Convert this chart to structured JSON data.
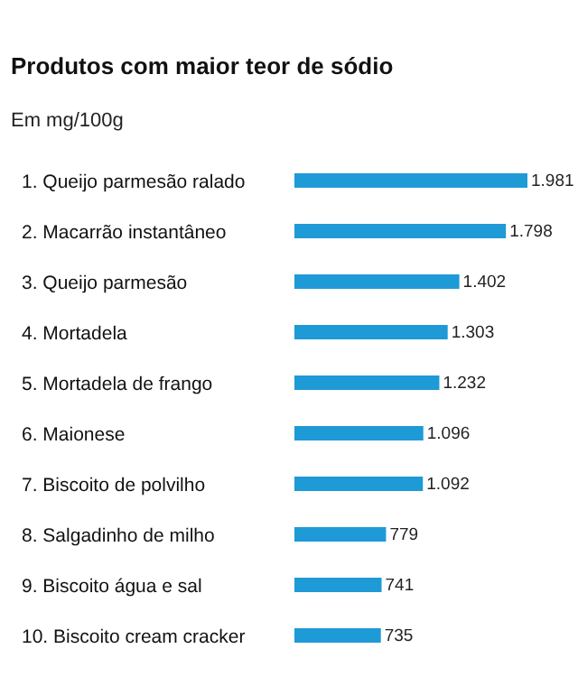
{
  "chart_data": {
    "type": "bar",
    "orientation": "horizontal",
    "title": "Produtos com maior teor de sódio",
    "subtitle": "Em mg/100g",
    "categories": [
      "1. Queijo parmesão ralado",
      "2. Macarrão instantâneo",
      "3. Queijo parmesão",
      "4. Mortadela",
      "5. Mortadela de frango",
      "6. Maionese",
      "7. Biscoito de polvilho",
      "8. Salgadinho de milho",
      "9. Biscoito água e sal",
      "10. Biscoito cream cracker"
    ],
    "values": [
      1981,
      1798,
      1402,
      1303,
      1232,
      1096,
      1092,
      779,
      741,
      735
    ],
    "value_labels": [
      "1.981",
      "1.798",
      "1.402",
      "1.303",
      "1.232",
      "1.096",
      "1.092",
      "779",
      "741",
      "735"
    ],
    "color": "#1e9ad6"
  }
}
